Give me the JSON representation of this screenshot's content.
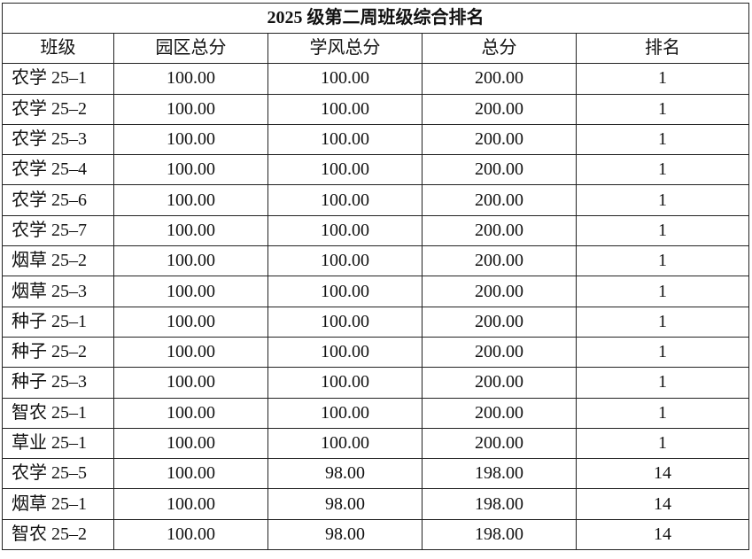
{
  "title": "2025 级第二周班级综合排名",
  "headers": [
    "班级",
    "园区总分",
    "学风总分",
    "总分",
    "排名"
  ],
  "rows": [
    [
      "农学 25–1",
      "100.00",
      "100.00",
      "200.00",
      "1"
    ],
    [
      "农学 25–2",
      "100.00",
      "100.00",
      "200.00",
      "1"
    ],
    [
      "农学 25–3",
      "100.00",
      "100.00",
      "200.00",
      "1"
    ],
    [
      "农学 25–4",
      "100.00",
      "100.00",
      "200.00",
      "1"
    ],
    [
      "农学 25–6",
      "100.00",
      "100.00",
      "200.00",
      "1"
    ],
    [
      "农学 25–7",
      "100.00",
      "100.00",
      "200.00",
      "1"
    ],
    [
      "烟草 25–2",
      "100.00",
      "100.00",
      "200.00",
      "1"
    ],
    [
      "烟草 25–3",
      "100.00",
      "100.00",
      "200.00",
      "1"
    ],
    [
      "种子 25–1",
      "100.00",
      "100.00",
      "200.00",
      "1"
    ],
    [
      "种子 25–2",
      "100.00",
      "100.00",
      "200.00",
      "1"
    ],
    [
      "种子 25–3",
      "100.00",
      "100.00",
      "200.00",
      "1"
    ],
    [
      "智农 25–1",
      "100.00",
      "100.00",
      "200.00",
      "1"
    ],
    [
      "草业 25–1",
      "100.00",
      "100.00",
      "200.00",
      "1"
    ],
    [
      "农学 25–5",
      "100.00",
      "98.00",
      "198.00",
      "14"
    ],
    [
      "烟草 25–1",
      "100.00",
      "98.00",
      "198.00",
      "14"
    ],
    [
      "智农 25–2",
      "100.00",
      "98.00",
      "198.00",
      "14"
    ]
  ]
}
